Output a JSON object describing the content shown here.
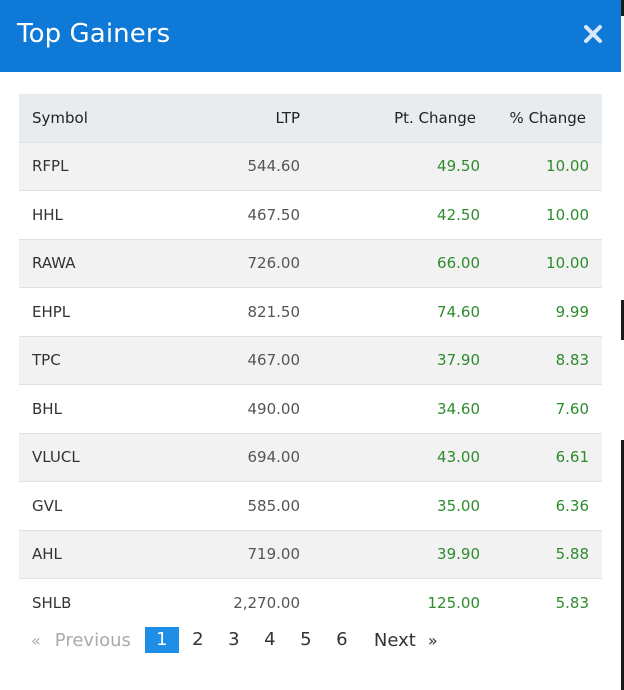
{
  "modal": {
    "title": "Top Gainers",
    "close_icon": "close-icon"
  },
  "table": {
    "headers": {
      "symbol": "Symbol",
      "ltp": "LTP",
      "pt_change": "Pt. Change",
      "pct_change": "% Change"
    },
    "rows": [
      {
        "symbol": "RFPL",
        "ltp": "544.60",
        "pt_change": "49.50",
        "pct_change": "10.00"
      },
      {
        "symbol": "HHL",
        "ltp": "467.50",
        "pt_change": "42.50",
        "pct_change": "10.00"
      },
      {
        "symbol": "RAWA",
        "ltp": "726.00",
        "pt_change": "66.00",
        "pct_change": "10.00"
      },
      {
        "symbol": "EHPL",
        "ltp": "821.50",
        "pt_change": "74.60",
        "pct_change": "9.99"
      },
      {
        "symbol": "TPC",
        "ltp": "467.00",
        "pt_change": "37.90",
        "pct_change": "8.83"
      },
      {
        "symbol": "BHL",
        "ltp": "490.00",
        "pt_change": "34.60",
        "pct_change": "7.60"
      },
      {
        "symbol": "VLUCL",
        "ltp": "694.00",
        "pt_change": "43.00",
        "pct_change": "6.61"
      },
      {
        "symbol": "GVL",
        "ltp": "585.00",
        "pt_change": "35.00",
        "pct_change": "6.36"
      },
      {
        "symbol": "AHL",
        "ltp": "719.00",
        "pt_change": "39.90",
        "pct_change": "5.88"
      },
      {
        "symbol": "SHLB",
        "ltp": "2,270.00",
        "pt_change": "125.00",
        "pct_change": "5.83"
      }
    ]
  },
  "pagination": {
    "prev_arrow": "«",
    "prev_label": "Previous",
    "pages": [
      "1",
      "2",
      "3",
      "4",
      "5",
      "6"
    ],
    "active_page": "1",
    "next_label": "Next",
    "next_arrow": "»"
  },
  "colors": {
    "header_bg": "#0e79d6",
    "positive": "#2e8b2e",
    "active_page_bg": "#1e8ee6"
  }
}
